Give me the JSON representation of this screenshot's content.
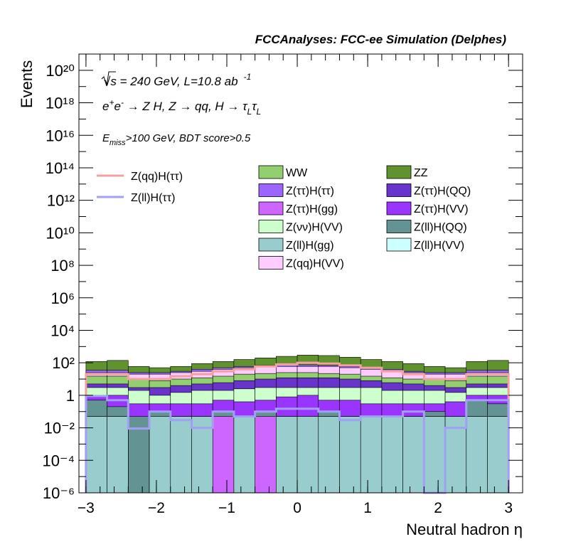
{
  "header": {
    "title": "FCCAnalyses: FCC-ee Simulation (Delphes)",
    "line_energy": "√s = 240 GeV, L=10.8 ab",
    "line_energy_exp": "-1",
    "line_process": "e⁺e⁻ → Z H, Z → qq, H → τ_L τ_L",
    "line_cut": "E_miss>100 GeV, BDT score>0.5"
  },
  "chart_data": {
    "type": "histogram-stacked",
    "title": "FCCAnalyses: FCC-ee Simulation (Delphes)",
    "xlabel": "Neutral hadron η",
    "ylabel": "Events",
    "xlim": [
      -3.1,
      3.2
    ],
    "ylim": [
      1e-06,
      1e+21
    ],
    "yscale": "log",
    "x_ticks": [
      "−3",
      "−2",
      "−1",
      "0",
      "1",
      "2",
      "3"
    ],
    "x_tick_values": [
      -3,
      -2,
      -1,
      0,
      1,
      2,
      3
    ],
    "y_ticks": [
      "10⁻⁶",
      "10⁻⁴",
      "10⁻²",
      "1",
      "10²",
      "10⁴",
      "10⁶",
      "10⁸",
      "10¹⁰",
      "10¹²",
      "10¹⁴",
      "10¹⁶",
      "10¹⁸",
      "10²⁰"
    ],
    "y_tick_exponents": [
      -6,
      -4,
      -2,
      0,
      2,
      4,
      6,
      8,
      10,
      12,
      14,
      16,
      18,
      20
    ],
    "bin_edges": [
      -3.0,
      -2.7,
      -2.4,
      -2.1,
      -1.8,
      -1.5,
      -1.2,
      -0.9,
      -0.6,
      -0.3,
      0.0,
      0.3,
      0.6,
      0.9,
      1.2,
      1.5,
      1.8,
      2.1,
      2.4,
      2.7,
      3.0
    ],
    "legend_lines": [
      {
        "name": "Z(qq)H(ττ)",
        "color": "#f5a0a0"
      },
      {
        "name": "Z(ll)H(ττ)",
        "color": "#a0a0f5"
      }
    ],
    "legend_stack": [
      {
        "name": "WW",
        "color": "#93cf71"
      },
      {
        "name": "ZZ",
        "color": "#60922d"
      },
      {
        "name": "Z(ττ)H(ττ)",
        "color": "#9b66ff"
      },
      {
        "name": "Z(ττ)H(QQ)",
        "color": "#6834cb"
      },
      {
        "name": "Z(ττ)H(gg)",
        "color": "#cd65ff"
      },
      {
        "name": "Z(ττ)H(VV)",
        "color": "#9a34ff"
      },
      {
        "name": "Z(νν)H(VV)",
        "color": "#ccffcc"
      },
      {
        "name": "Z(ll)H(QQ)",
        "color": "#649393"
      },
      {
        "name": "Z(ll)H(gg)",
        "color": "#99cccc"
      },
      {
        "name": "Z(ll)H(VV)",
        "color": "#ccffff"
      },
      {
        "name": "Z(qq)H(VV)",
        "color": "#ffccff"
      }
    ],
    "stack_tops": [
      {
        "name": "Z(ll)H(gg)",
        "color": "#99cccc",
        "values": [
          0.05,
          0.05,
          1e-06,
          0.05,
          0.05,
          0.05,
          1e-06,
          0.05,
          1e-06,
          0.05,
          0.05,
          0.05,
          0.05,
          0.05,
          0.05,
          0.05,
          0.05,
          0.05,
          0.05,
          0.05
        ]
      },
      {
        "name": "Z(ττ)H(gg)",
        "color": "#cd65ff",
        "values": [
          0.05,
          0.05,
          1e-06,
          0.02,
          0.05,
          0.05,
          0.05,
          0.05,
          0.05,
          0.05,
          0.02,
          0.05,
          0.05,
          0.05,
          0.05,
          0.05,
          0.05,
          0.05,
          0.05,
          0.05
        ]
      },
      {
        "name": "Z(ll)H(QQ)",
        "color": "#649393",
        "values": [
          0.5,
          0.2,
          0.05,
          0.1,
          0.05,
          0.05,
          0.1,
          0.05,
          0.1,
          0.05,
          0.05,
          0.1,
          0.05,
          0.05,
          0.05,
          0.05,
          0.1,
          0.05,
          0.5,
          0.3
        ]
      },
      {
        "name": "Z(ττ)H(VV)",
        "color": "#9a34ff",
        "values": [
          1,
          1,
          0.3,
          0.3,
          0.3,
          0.3,
          0.5,
          0.4,
          0.5,
          0.8,
          1,
          0.5,
          0.5,
          0.3,
          0.3,
          0.3,
          0.3,
          0.4,
          1,
          1
        ]
      },
      {
        "name": "Z(νν)H(VV)",
        "color": "#ccffcc",
        "values": [
          3,
          3,
          2,
          1,
          1.5,
          2,
          2,
          2.5,
          3,
          3,
          3,
          3,
          3,
          3,
          2,
          2,
          2,
          1.5,
          3,
          3
        ]
      },
      {
        "name": "Z(ττ)H(QQ)",
        "color": "#6834cb",
        "values": [
          5,
          5,
          3,
          3,
          4,
          5,
          6,
          8,
          10,
          12,
          12,
          12,
          10,
          8,
          6,
          5,
          4,
          3,
          5,
          5
        ]
      },
      {
        "name": "WW",
        "color": "#93cf71",
        "values": [
          15,
          15,
          10,
          8,
          10,
          12,
          15,
          20,
          22,
          25,
          25,
          22,
          20,
          15,
          12,
          10,
          10,
          8,
          15,
          15
        ]
      },
      {
        "name": "Z(qq)H(VV)",
        "color": "#ffccff",
        "values": [
          25,
          25,
          20,
          20,
          25,
          30,
          40,
          50,
          60,
          60,
          60,
          60,
          50,
          40,
          30,
          25,
          20,
          20,
          25,
          25
        ]
      },
      {
        "name": "Z(ττ)H(ττ)",
        "color": "#9b66ff",
        "values": [
          35,
          35,
          25,
          25,
          30,
          40,
          50,
          60,
          70,
          75,
          75,
          70,
          60,
          50,
          40,
          30,
          25,
          25,
          35,
          35
        ]
      },
      {
        "name": "ZZ",
        "color": "#60922d",
        "values": [
          120,
          140,
          60,
          50,
          60,
          90,
          120,
          160,
          200,
          250,
          300,
          280,
          220,
          160,
          120,
          90,
          60,
          50,
          120,
          140
        ]
      }
    ],
    "line_series": [
      {
        "name": "Z(qq)H(ττ)",
        "color": "#f5a0a0",
        "values": [
          20,
          20,
          10,
          10,
          15,
          20,
          30,
          40,
          60,
          80,
          100,
          90,
          70,
          50,
          30,
          20,
          10,
          10,
          20,
          20
        ]
      },
      {
        "name": "Z(ll)H(ττ)",
        "color": "#a0a0f5",
        "values": [
          0.9,
          0.5,
          0.009,
          0.1,
          0.03,
          0.01,
          0.1,
          0.05,
          0.1,
          0.15,
          0.15,
          0.1,
          0.03,
          0.05,
          0.05,
          0.1,
          1e-06,
          0.01,
          0.5,
          0.5
        ]
      }
    ]
  }
}
